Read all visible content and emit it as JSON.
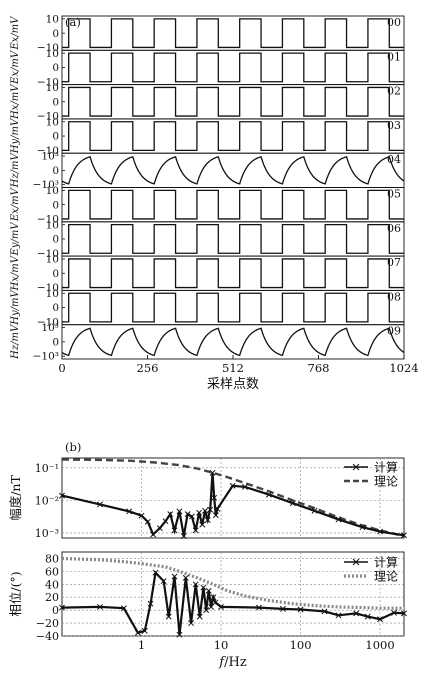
{
  "chart_data": [
    {
      "type": "line",
      "panel_label": "(a)",
      "xlabel": "采样点数",
      "xlim": [
        0,
        1024
      ],
      "xticks": [
        0,
        256,
        512,
        768,
        1024
      ],
      "square_period": 128,
      "square_first_rise": 20,
      "square_high_fraction": 0.5,
      "channels": [
        {
          "id": "00",
          "ylabel": "Ex/mV",
          "waveform": "square",
          "yticks": [
            "10",
            "0",
            "−10"
          ],
          "ylim": [
            -12,
            12
          ],
          "amplitude": 10
        },
        {
          "id": "01",
          "ylabel": "Ex/mV",
          "waveform": "square",
          "yticks": [
            "10",
            "0",
            "−10"
          ],
          "ylim": [
            -12,
            12
          ],
          "amplitude": 10
        },
        {
          "id": "02",
          "ylabel": "Hx/mV",
          "waveform": "square",
          "yticks": [
            "10",
            "0",
            "−10"
          ],
          "ylim": [
            -12,
            12
          ],
          "amplitude": 10
        },
        {
          "id": "03",
          "ylabel": "Hy/mV",
          "waveform": "square",
          "yticks": [
            "10",
            "0",
            "−10"
          ],
          "ylim": [
            -12,
            12
          ],
          "amplitude": 10
        },
        {
          "id": "04",
          "ylabel": "Hz/mV",
          "waveform": "exponential",
          "yticks": [
            "10³",
            "0",
            "−10³"
          ],
          "ylim": [
            -1200,
            1200
          ],
          "amplitude": 1000
        },
        {
          "id": "05",
          "ylabel": "Ex/mV",
          "waveform": "square",
          "yticks": [
            "10",
            "0",
            "−10"
          ],
          "ylim": [
            -12,
            12
          ],
          "amplitude": 10
        },
        {
          "id": "06",
          "ylabel": "Ey/mV",
          "waveform": "square",
          "yticks": [
            "10",
            "0",
            "−10"
          ],
          "ylim": [
            -12,
            12
          ],
          "amplitude": 10
        },
        {
          "id": "07",
          "ylabel": "Hx/mV",
          "waveform": "square",
          "yticks": [
            "10",
            "0",
            "−10"
          ],
          "ylim": [
            -12,
            12
          ],
          "amplitude": 10
        },
        {
          "id": "08",
          "ylabel": "Hy/mV",
          "waveform": "square",
          "yticks": [
            "10",
            "0",
            "−10"
          ],
          "ylim": [
            -12,
            12
          ],
          "amplitude": 10
        },
        {
          "id": "09",
          "ylabel": "Hz/mV",
          "waveform": "exponential",
          "yticks": [
            "10³",
            "0",
            "−10³"
          ],
          "ylim": [
            -1200,
            1200
          ],
          "amplitude": 1000
        }
      ]
    },
    {
      "type": "line",
      "panel_label": "(b)",
      "ylabel": "幅度/nT",
      "yscale": "log",
      "xscale": "log",
      "xlim": [
        0.1,
        2000
      ],
      "ylim": [
        0.0007,
        0.2
      ],
      "yticks": [
        {
          "value": 0.1,
          "label": "10⁻¹"
        },
        {
          "value": 0.01,
          "label": "10⁻²"
        },
        {
          "value": 0.001,
          "label": "10⁻³"
        }
      ],
      "grid": true,
      "legend_position": "top-right",
      "series": [
        {
          "name": "计算",
          "style": "solid-x",
          "color": "#111111",
          "points": [
            [
              0.1,
              0.014
            ],
            [
              0.3,
              0.0075
            ],
            [
              0.7,
              0.0046
            ],
            [
              1.0,
              0.0034
            ],
            [
              1.2,
              0.0022
            ],
            [
              1.4,
              0.0009
            ],
            [
              1.7,
              0.0014
            ],
            [
              2.0,
              0.0023
            ],
            [
              2.3,
              0.0038
            ],
            [
              2.6,
              0.0012
            ],
            [
              3.0,
              0.0046
            ],
            [
              3.4,
              0.0008
            ],
            [
              3.8,
              0.0038
            ],
            [
              4.3,
              0.0032
            ],
            [
              4.8,
              0.0012
            ],
            [
              5.3,
              0.0042
            ],
            [
              5.8,
              0.0018
            ],
            [
              6.3,
              0.0048
            ],
            [
              6.8,
              0.0025
            ],
            [
              7.3,
              0.0052
            ],
            [
              7.8,
              0.07
            ],
            [
              8.2,
              0.012
            ],
            [
              8.6,
              0.0035
            ],
            [
              9.0,
              0.0055
            ],
            [
              14,
              0.028
            ],
            [
              20,
              0.026
            ],
            [
              40,
              0.015
            ],
            [
              80,
              0.0082
            ],
            [
              150,
              0.0048
            ],
            [
              300,
              0.0026
            ],
            [
              600,
              0.0015
            ],
            [
              1000,
              0.0011
            ],
            [
              2000,
              0.00085
            ]
          ]
        },
        {
          "name": "理论",
          "style": "dashed",
          "color": "#444444",
          "points": [
            [
              0.1,
              0.18
            ],
            [
              0.3,
              0.175
            ],
            [
              0.7,
              0.165
            ],
            [
              1.5,
              0.145
            ],
            [
              3,
              0.12
            ],
            [
              5,
              0.095
            ],
            [
              8,
              0.07
            ],
            [
              12,
              0.052
            ],
            [
              20,
              0.034
            ],
            [
              40,
              0.019
            ],
            [
              80,
              0.01
            ],
            [
              150,
              0.0058
            ],
            [
              300,
              0.003
            ],
            [
              600,
              0.0017
            ],
            [
              1000,
              0.0012
            ],
            [
              2000,
              0.0008
            ]
          ]
        }
      ]
    },
    {
      "type": "line",
      "ylabel": "相位/(°)",
      "xlabel": "f/Hz",
      "xscale": "log",
      "xlim": [
        0.1,
        2000
      ],
      "ylim": [
        -40,
        90
      ],
      "yticks": [
        80,
        60,
        40,
        20,
        0,
        -20,
        -40
      ],
      "xticks": [
        {
          "value": 1,
          "label": "1"
        },
        {
          "value": 10,
          "label": "10"
        },
        {
          "value": 100,
          "label": "100"
        },
        {
          "value": 1000,
          "label": "1000"
        }
      ],
      "grid": true,
      "legend_position": "top-right",
      "series": [
        {
          "name": "计算",
          "style": "solid-x",
          "color": "#111111",
          "points": [
            [
              0.1,
              4
            ],
            [
              0.3,
              5
            ],
            [
              0.6,
              3
            ],
            [
              0.9,
              -35
            ],
            [
              1.1,
              -32
            ],
            [
              1.3,
              10
            ],
            [
              1.5,
              58
            ],
            [
              1.9,
              45
            ],
            [
              2.2,
              -10
            ],
            [
              2.6,
              52
            ],
            [
              3.0,
              -38
            ],
            [
              3.6,
              50
            ],
            [
              4.2,
              -20
            ],
            [
              4.8,
              40
            ],
            [
              5.4,
              -10
            ],
            [
              6.0,
              35
            ],
            [
              6.5,
              0
            ],
            [
              7.0,
              30
            ],
            [
              7.5,
              5
            ],
            [
              8.0,
              20
            ],
            [
              8.5,
              12
            ],
            [
              10,
              5
            ],
            [
              30,
              4
            ],
            [
              60,
              2
            ],
            [
              100,
              1
            ],
            [
              200,
              -2
            ],
            [
              300,
              -8
            ],
            [
              500,
              -5
            ],
            [
              700,
              -10
            ],
            [
              1000,
              -14
            ],
            [
              1500,
              -4
            ],
            [
              2000,
              -5
            ]
          ]
        },
        {
          "name": "理论",
          "style": "dotted-thick",
          "color": "#888888",
          "points": [
            [
              0.1,
              80
            ],
            [
              0.3,
              78
            ],
            [
              0.6,
              75
            ],
            [
              1,
              72
            ],
            [
              2,
              67
            ],
            [
              3,
              60
            ],
            [
              5,
              50
            ],
            [
              8,
              40
            ],
            [
              12,
              30
            ],
            [
              20,
              22
            ],
            [
              40,
              15
            ],
            [
              80,
              10
            ],
            [
              150,
              7
            ],
            [
              300,
              5
            ],
            [
              600,
              4
            ],
            [
              1000,
              3
            ],
            [
              2000,
              3
            ]
          ]
        }
      ]
    }
  ]
}
